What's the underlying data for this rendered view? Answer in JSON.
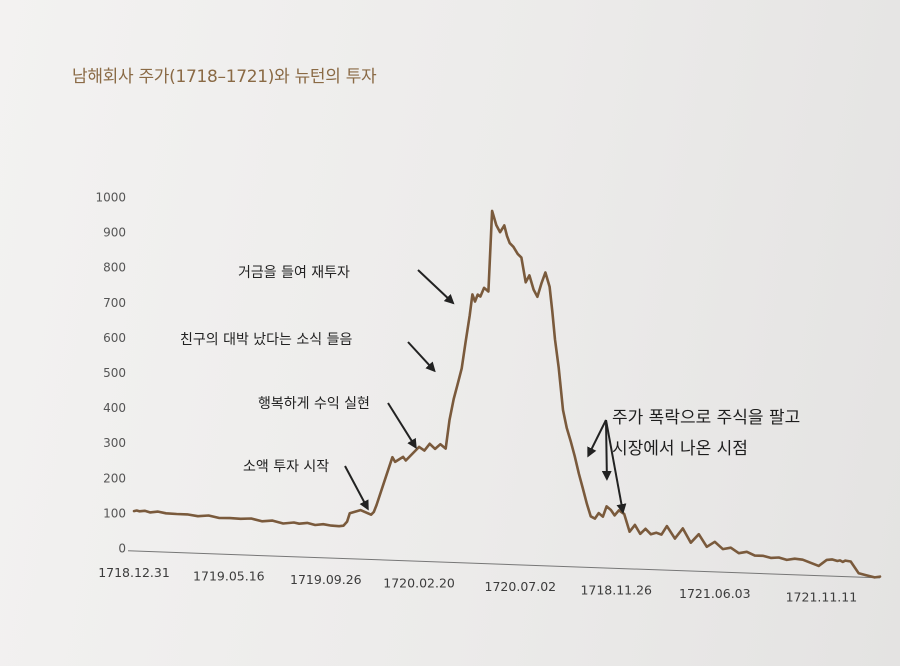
{
  "chart_data": {
    "type": "line",
    "title": "남해회사 주가(1718–1721)와 뉴턴의 투자",
    "xlabel": "",
    "ylabel": "",
    "ylim": [
      0,
      1000
    ],
    "yticks": [
      0,
      100,
      200,
      300,
      400,
      500,
      600,
      700,
      800,
      900,
      1000
    ],
    "x_tick_labels": [
      "1718.12.31",
      "1719.05.16",
      "1719.09.26",
      "1720.02.20",
      "1720.07.02",
      "1718.11.26",
      "1721.06.03",
      "1721.11.11"
    ],
    "grid": false,
    "legend": "none",
    "line_color": "#7a5a3c",
    "series": [
      {
        "x": [
          0.0,
          0.05,
          0.1,
          0.2,
          0.3,
          0.45,
          0.6,
          0.8,
          1.0,
          1.2,
          1.4,
          1.6,
          1.8,
          2.0,
          2.2,
          2.4,
          2.6,
          2.8,
          3.0,
          3.1,
          3.25,
          3.4,
          3.55,
          3.7,
          3.85,
          3.93,
          4.0,
          4.05,
          4.25,
          4.45,
          4.5,
          4.55,
          4.85,
          4.9,
          5.05,
          5.1,
          5.35,
          5.45,
          5.55,
          5.65,
          5.75,
          5.85,
          5.92,
          6.0,
          6.07,
          6.15,
          6.22,
          6.3,
          6.35,
          6.4,
          6.45,
          6.5,
          6.57,
          6.65,
          6.72,
          6.8,
          6.87,
          6.95,
          7.0,
          7.05,
          7.12,
          7.2,
          7.27,
          7.35,
          7.42,
          7.5,
          7.57,
          7.65,
          7.72,
          7.8,
          7.85,
          7.9,
          7.97,
          8.05,
          8.12,
          8.2,
          8.27,
          8.35,
          8.42,
          8.5,
          8.57,
          8.65,
          8.72,
          8.8,
          8.87,
          8.95,
          9.02,
          9.1,
          9.2,
          9.3,
          9.4,
          9.5,
          9.6,
          9.7,
          9.8,
          9.9,
          10.0,
          10.15,
          10.3,
          10.45,
          10.6,
          10.75,
          10.9,
          11.05,
          11.2,
          11.35,
          11.5,
          11.65,
          11.8,
          11.95,
          12.1,
          12.25,
          12.4,
          12.55,
          12.7,
          12.85,
          13.0,
          13.1,
          13.2,
          13.25,
          13.3,
          13.35,
          13.45,
          13.6,
          13.75,
          13.9,
          14.0
        ],
        "values": [
          108,
          110,
          108,
          110,
          106,
          109,
          105,
          104,
          104,
          100,
          103,
          97,
          98,
          97,
          99,
          92,
          95,
          88,
          92,
          89,
          92,
          87,
          90,
          87,
          86,
          88,
          100,
          124,
          134,
          122,
          130,
          150,
          288,
          275,
          290,
          280,
          320,
          310,
          330,
          316,
          330,
          318,
          400,
          460,
          500,
          548,
          620,
          700,
          760,
          740,
          760,
          755,
          780,
          770,
          1000,
          960,
          940,
          960,
          930,
          910,
          900,
          880,
          870,
          800,
          820,
          780,
          760,
          800,
          830,
          790,
          720,
          640,
          560,
          440,
          390,
          350,
          310,
          260,
          220,
          175,
          140,
          134,
          150,
          140,
          170,
          160,
          145,
          160,
          150,
          100,
          120,
          95,
          110,
          95,
          100,
          95,
          120,
          85,
          115,
          75,
          100,
          65,
          80,
          60,
          65,
          50,
          55,
          45,
          45,
          40,
          42,
          36,
          40,
          38,
          30,
          22,
          40,
          42,
          38,
          40,
          36,
          40,
          38,
          5,
          0,
          -5,
          -2
        ]
      }
    ],
    "annotations": [
      {
        "text": "거금을 들여 재투자",
        "target": [
          6.1,
          740
        ]
      },
      {
        "text": "친구의 대박 났다는 소식 들음",
        "target": [
          5.75,
          545
        ]
      },
      {
        "text": "행복하게 수익 실현",
        "target": [
          5.4,
          325
        ]
      },
      {
        "text": "소액 투자 시작",
        "target": [
          4.5,
          145
        ]
      },
      {
        "text": "주가 폭락으로 주식을 팔고",
        "line2": "시장에서 나온 시점",
        "targets": [
          [
            8.45,
            312
          ],
          [
            8.8,
            248
          ],
          [
            9.1,
            155
          ]
        ]
      }
    ]
  }
}
